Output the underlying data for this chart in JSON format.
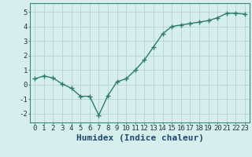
{
  "x": [
    0,
    1,
    2,
    3,
    4,
    5,
    6,
    7,
    8,
    9,
    10,
    11,
    12,
    13,
    14,
    15,
    16,
    17,
    18,
    19,
    20,
    21,
    22,
    23
  ],
  "y": [
    0.4,
    0.6,
    0.45,
    0.05,
    -0.25,
    -0.8,
    -0.8,
    -2.1,
    -0.75,
    0.2,
    0.4,
    1.0,
    1.7,
    2.6,
    3.5,
    4.0,
    4.1,
    4.2,
    4.3,
    4.4,
    4.6,
    4.9,
    4.9,
    4.85
  ],
  "line_color": "#2d7d6e",
  "marker": "+",
  "marker_size": 4,
  "bg_color": "#d6eeec",
  "grid_color": "#b8d8d4",
  "xlabel": "Humidex (Indice chaleur)",
  "xlabel_color": "#1a4a6e",
  "xlim": [
    -0.5,
    23.5
  ],
  "ylim": [
    -2.6,
    5.6
  ],
  "xticks": [
    0,
    1,
    2,
    3,
    4,
    5,
    6,
    7,
    8,
    9,
    10,
    11,
    12,
    13,
    14,
    15,
    16,
    17,
    18,
    19,
    20,
    21,
    22,
    23
  ],
  "yticks": [
    -2,
    -1,
    0,
    1,
    2,
    3,
    4,
    5
  ],
  "tick_label_fontsize": 6.5,
  "xlabel_fontsize": 8,
  "line_width": 1.0,
  "marker_edge_width": 1.0
}
